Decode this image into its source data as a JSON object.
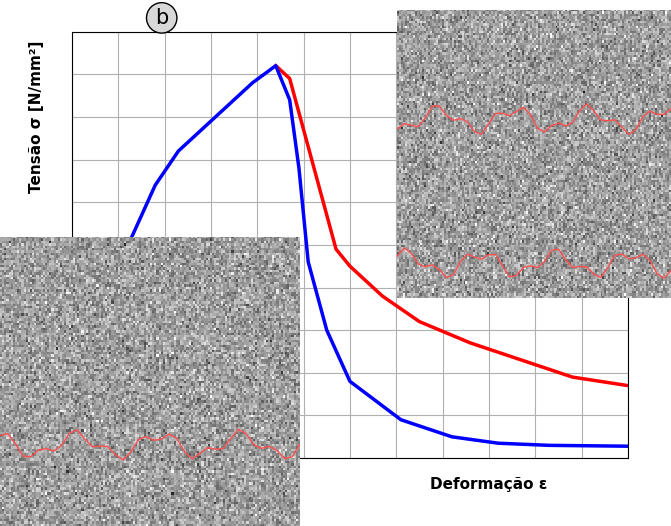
{
  "chart_data": {
    "type": "line",
    "annotation": "b",
    "x_label": "Deformação ε",
    "y_label": "Tensão σ [N/mm²]",
    "xlim": [
      0,
      12
    ],
    "xticks": [
      0,
      1,
      2,
      3,
      4,
      5,
      6,
      7,
      8,
      9,
      10,
      11,
      12
    ],
    "ylim": [
      0,
      10
    ],
    "yticks": [
      0,
      1,
      2,
      3,
      4,
      5,
      6,
      7,
      8,
      9,
      10
    ],
    "grid": true,
    "tick_labels": false,
    "series": [
      {
        "color": "#ff0000",
        "line_style": "solid",
        "x": [
          4.4,
          4.7,
          5.0,
          5.4,
          5.7,
          6.0,
          6.7,
          7.5,
          8.6,
          9.7,
          10.8,
          12.0
        ],
        "values": [
          9.2,
          8.9,
          7.7,
          6.1,
          4.9,
          4.5,
          3.8,
          3.2,
          2.7,
          2.3,
          1.9,
          1.7
        ]
      },
      {
        "color": "#0000ff",
        "line_style": "solid",
        "x": [
          1.3,
          1.8,
          2.3,
          2.8,
          3.4,
          3.9,
          4.4,
          4.7,
          4.9,
          5.1,
          5.5,
          6.0,
          7.1,
          8.2,
          9.2,
          10.3,
          12.0
        ],
        "values": [
          5.2,
          6.4,
          7.2,
          7.7,
          8.3,
          8.8,
          9.2,
          8.4,
          6.8,
          4.6,
          3.0,
          1.8,
          0.9,
          0.5,
          0.35,
          0.3,
          0.28
        ]
      }
    ]
  }
}
